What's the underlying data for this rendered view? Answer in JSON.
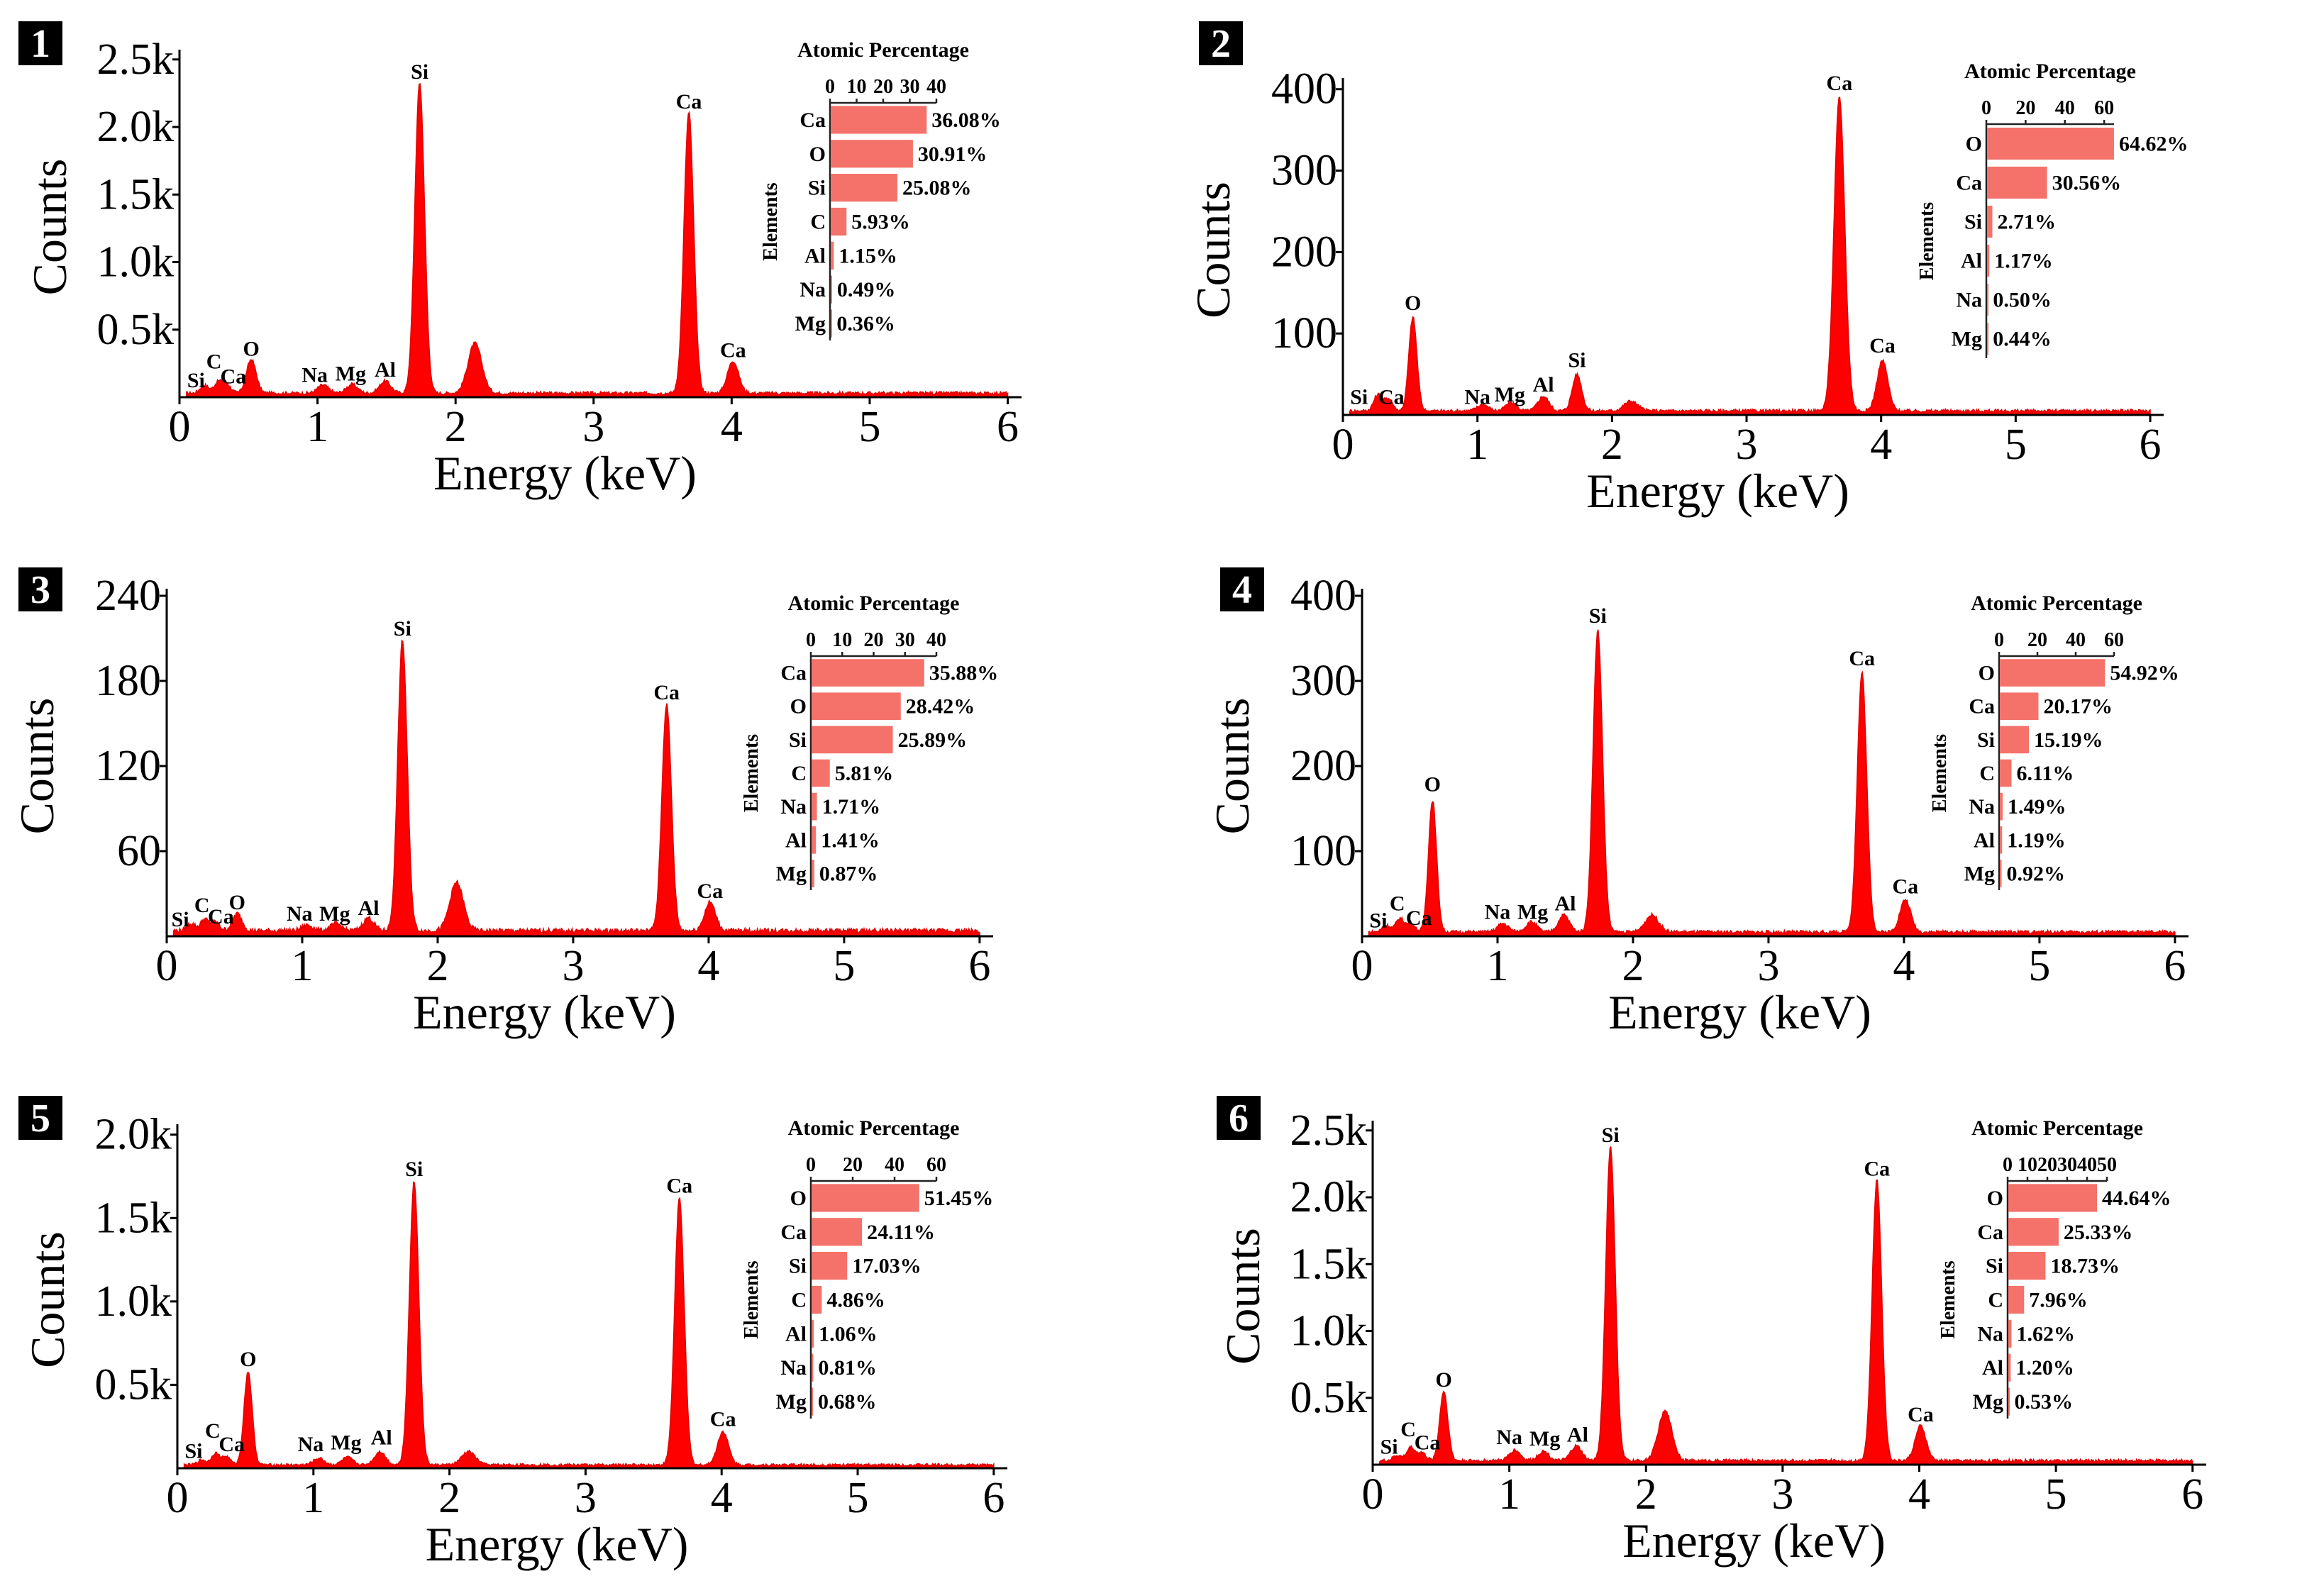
{
  "figure_title": "",
  "chart_data": [
    {
      "type": "area",
      "panel_label": "1",
      "xlabel": "Energy (keV)",
      "ylabel": "Counts",
      "xlim": [
        0,
        6.1
      ],
      "x_ticks": [
        0,
        1,
        2,
        3,
        4,
        5,
        6
      ],
      "x_tick_labels": [
        "0",
        "1",
        "2",
        "3",
        "4",
        "5",
        "6"
      ],
      "ylim": [
        0,
        2520
      ],
      "y_ticks": [
        500,
        1000,
        1500,
        2000,
        2500
      ],
      "y_tick_labels": [
        "0.5k",
        "1.0k",
        "1.5k",
        "2.0k",
        "2.5k"
      ],
      "spectrum_color": "#ff0000",
      "baseline": 30,
      "peaks": [
        {
          "x": 0.18,
          "y": 60,
          "w": 0.03
        },
        {
          "x": 0.28,
          "y": 80,
          "w": 0.03
        },
        {
          "x": 0.34,
          "y": 70,
          "w": 0.03
        },
        {
          "x": 0.52,
          "y": 250,
          "w": 0.035
        },
        {
          "x": 1.04,
          "y": 60,
          "w": 0.04
        },
        {
          "x": 1.25,
          "y": 65,
          "w": 0.04
        },
        {
          "x": 1.49,
          "y": 90,
          "w": 0.04
        },
        {
          "x": 1.74,
          "y": 2300,
          "w": 0.035
        },
        {
          "x": 2.14,
          "y": 370,
          "w": 0.05
        },
        {
          "x": 3.69,
          "y": 2080,
          "w": 0.035
        },
        {
          "x": 4.01,
          "y": 240,
          "w": 0.04
        }
      ],
      "annotations": [
        {
          "text": "Si",
          "x": 0.12,
          "y": 20
        },
        {
          "text": "C",
          "x": 0.25,
          "y": 160
        },
        {
          "text": "Ca",
          "x": 0.39,
          "y": 50
        },
        {
          "text": "O",
          "x": 0.52,
          "y": 255
        },
        {
          "text": "Na",
          "x": 0.98,
          "y": 60
        },
        {
          "text": "Mg",
          "x": 1.24,
          "y": 70
        },
        {
          "text": "Al",
          "x": 1.49,
          "y": 100
        },
        {
          "text": "Si",
          "x": 1.74,
          "y": 2305
        },
        {
          "text": "Ca",
          "x": 3.69,
          "y": 2085
        },
        {
          "text": "Ca",
          "x": 4.01,
          "y": 245
        }
      ],
      "inset": {
        "title": "Atomic Percentage",
        "ylabel": "Elements",
        "xlim": [
          0,
          40
        ],
        "x_ticks": [
          0,
          10,
          20,
          30,
          40
        ],
        "x_tick_labels": [
          "0",
          "10",
          "20",
          "30",
          "40"
        ],
        "categories": [
          "Ca",
          "O",
          "Si",
          "C",
          "Al",
          "Na",
          "Mg"
        ],
        "values": [
          36.08,
          30.91,
          25.08,
          5.93,
          1.15,
          0.49,
          0.36
        ],
        "value_labels": [
          "36.08%",
          "30.91%",
          "25.08%",
          "5.93%",
          "1.15%",
          "0.49%",
          "0.36%"
        ],
        "bar_color": "#f4726a"
      }
    },
    {
      "type": "area",
      "panel_label": "2",
      "xlabel": "Energy (keV)",
      "ylabel": "Counts",
      "xlim": [
        0,
        6.1
      ],
      "x_ticks": [
        0,
        1,
        2,
        3,
        4,
        5,
        6
      ],
      "x_tick_labels": [
        "0",
        "1",
        "2",
        "3",
        "4",
        "5",
        "6"
      ],
      "ylim": [
        0,
        405
      ],
      "y_ticks": [
        100,
        200,
        300,
        400
      ],
      "y_tick_labels": [
        "100",
        "200",
        "300",
        "400"
      ],
      "spectrum_color": "#ff0000",
      "baseline": 5,
      "peaks": [
        {
          "x": 0.26,
          "y": 20,
          "w": 0.03
        },
        {
          "x": 0.34,
          "y": 15,
          "w": 0.03
        },
        {
          "x": 0.52,
          "y": 115,
          "w": 0.03
        },
        {
          "x": 1.04,
          "y": 8,
          "w": 0.04
        },
        {
          "x": 1.25,
          "y": 10,
          "w": 0.04
        },
        {
          "x": 1.49,
          "y": 18,
          "w": 0.04
        },
        {
          "x": 1.74,
          "y": 45,
          "w": 0.035
        },
        {
          "x": 2.14,
          "y": 12,
          "w": 0.05
        },
        {
          "x": 3.69,
          "y": 385,
          "w": 0.04
        },
        {
          "x": 4.01,
          "y": 62,
          "w": 0.04
        }
      ],
      "annotations": [
        {
          "text": "Si",
          "x": 0.12,
          "y": 5
        },
        {
          "text": "Ca",
          "x": 0.36,
          "y": 5
        },
        {
          "text": "O",
          "x": 0.52,
          "y": 120
        },
        {
          "text": "Na",
          "x": 1.0,
          "y": 5
        },
        {
          "text": "Mg",
          "x": 1.24,
          "y": 8
        },
        {
          "text": "Al",
          "x": 1.49,
          "y": 20
        },
        {
          "text": "Si",
          "x": 1.74,
          "y": 50
        },
        {
          "text": "Ca",
          "x": 3.69,
          "y": 390
        },
        {
          "text": "Ca",
          "x": 4.01,
          "y": 68
        }
      ],
      "inset": {
        "title": "Atomic Percentage",
        "ylabel": "Elements",
        "xlim": [
          0,
          65
        ],
        "x_ticks": [
          0,
          20,
          40,
          60
        ],
        "x_tick_labels": [
          "0",
          "20",
          "40",
          "60"
        ],
        "categories": [
          "O",
          "Ca",
          "Si",
          "Al",
          "Na",
          "Mg"
        ],
        "values": [
          64.62,
          30.56,
          2.71,
          1.17,
          0.5,
          0.44
        ],
        "value_labels": [
          "64.62%",
          "30.56%",
          "2.71%",
          "1.17%",
          "0.50%",
          "0.44%"
        ],
        "bar_color": "#f4726a"
      }
    },
    {
      "type": "area",
      "panel_label": "3",
      "xlabel": "Energy (keV)",
      "ylabel": "Counts",
      "xlim": [
        0,
        6.1
      ],
      "x_ticks": [
        0,
        1,
        2,
        3,
        4,
        5,
        6
      ],
      "x_tick_labels": [
        "0",
        "1",
        "2",
        "3",
        "4",
        "5",
        "6"
      ],
      "ylim": [
        0,
        240
      ],
      "y_ticks": [
        60,
        120,
        180,
        240
      ],
      "y_tick_labels": [
        "60",
        "120",
        "180",
        "240"
      ],
      "spectrum_color": "#ff0000",
      "baseline": 4,
      "peaks": [
        {
          "x": 0.18,
          "y": 5,
          "w": 0.03
        },
        {
          "x": 0.28,
          "y": 8,
          "w": 0.03
        },
        {
          "x": 0.36,
          "y": 6,
          "w": 0.03
        },
        {
          "x": 0.52,
          "y": 12,
          "w": 0.035
        },
        {
          "x": 1.04,
          "y": 4,
          "w": 0.04
        },
        {
          "x": 1.25,
          "y": 5,
          "w": 0.04
        },
        {
          "x": 1.49,
          "y": 9,
          "w": 0.04
        },
        {
          "x": 1.74,
          "y": 205,
          "w": 0.035
        },
        {
          "x": 2.14,
          "y": 34,
          "w": 0.05
        },
        {
          "x": 3.69,
          "y": 160,
          "w": 0.035
        },
        {
          "x": 4.01,
          "y": 20,
          "w": 0.04
        }
      ],
      "annotations": [
        {
          "text": "Si",
          "x": 0.1,
          "y": 2
        },
        {
          "text": "C",
          "x": 0.26,
          "y": 12
        },
        {
          "text": "Ca",
          "x": 0.4,
          "y": 4
        },
        {
          "text": "O",
          "x": 0.52,
          "y": 14
        },
        {
          "text": "Na",
          "x": 0.98,
          "y": 6
        },
        {
          "text": "Mg",
          "x": 1.24,
          "y": 6
        },
        {
          "text": "Al",
          "x": 1.49,
          "y": 10
        },
        {
          "text": "Si",
          "x": 1.74,
          "y": 207
        },
        {
          "text": "Ca",
          "x": 3.69,
          "y": 162
        },
        {
          "text": "Ca",
          "x": 4.01,
          "y": 22
        }
      ],
      "inset": {
        "title": "Atomic Percentage",
        "ylabel": "Elements",
        "xlim": [
          0,
          40
        ],
        "x_ticks": [
          0,
          10,
          20,
          30,
          40
        ],
        "x_tick_labels": [
          "0",
          "10",
          "20",
          "30",
          "40"
        ],
        "categories": [
          "Ca",
          "O",
          "Si",
          "C",
          "Na",
          "Al",
          "Mg"
        ],
        "values": [
          35.88,
          28.42,
          25.89,
          5.81,
          1.71,
          1.41,
          0.87
        ],
        "value_labels": [
          "35.88%",
          "28.42%",
          "25.89%",
          "5.81%",
          "1.71%",
          "1.41%",
          "0.87%"
        ],
        "bar_color": "#f4726a"
      }
    },
    {
      "type": "area",
      "panel_label": "4",
      "xlabel": "Energy (keV)",
      "ylabel": "Counts",
      "xlim": [
        0,
        6.1
      ],
      "x_ticks": [
        0,
        1,
        2,
        3,
        4,
        5,
        6
      ],
      "x_tick_labels": [
        "0",
        "1",
        "2",
        "3",
        "4",
        "5",
        "6"
      ],
      "ylim": [
        0,
        400
      ],
      "y_ticks": [
        100,
        200,
        300,
        400
      ],
      "y_tick_labels": [
        "100",
        "200",
        "300",
        "400"
      ],
      "spectrum_color": "#ff0000",
      "baseline": 5,
      "peaks": [
        {
          "x": 0.18,
          "y": 8,
          "w": 0.03
        },
        {
          "x": 0.28,
          "y": 16,
          "w": 0.03
        },
        {
          "x": 0.36,
          "y": 10,
          "w": 0.03
        },
        {
          "x": 0.52,
          "y": 155,
          "w": 0.03
        },
        {
          "x": 1.04,
          "y": 10,
          "w": 0.04
        },
        {
          "x": 1.25,
          "y": 12,
          "w": 0.04
        },
        {
          "x": 1.49,
          "y": 20,
          "w": 0.04
        },
        {
          "x": 1.74,
          "y": 355,
          "w": 0.035
        },
        {
          "x": 2.14,
          "y": 20,
          "w": 0.05
        },
        {
          "x": 3.69,
          "y": 305,
          "w": 0.035
        },
        {
          "x": 4.01,
          "y": 38,
          "w": 0.04
        }
      ],
      "annotations": [
        {
          "text": "Si",
          "x": 0.12,
          "y": 2
        },
        {
          "text": "C",
          "x": 0.26,
          "y": 22
        },
        {
          "text": "Ca",
          "x": 0.42,
          "y": 5
        },
        {
          "text": "O",
          "x": 0.52,
          "y": 162
        },
        {
          "text": "Na",
          "x": 1.0,
          "y": 12
        },
        {
          "text": "Mg",
          "x": 1.26,
          "y": 12
        },
        {
          "text": "Al",
          "x": 1.5,
          "y": 22
        },
        {
          "text": "Si",
          "x": 1.74,
          "y": 360
        },
        {
          "text": "Ca",
          "x": 3.69,
          "y": 310
        },
        {
          "text": "Ca",
          "x": 4.01,
          "y": 42
        }
      ],
      "inset": {
        "title": "Atomic Percentage",
        "ylabel": "Elements",
        "xlim": [
          0,
          60
        ],
        "x_ticks": [
          0,
          20,
          40,
          60
        ],
        "x_tick_labels": [
          "0",
          "20",
          "40",
          "60"
        ],
        "categories": [
          "O",
          "Ca",
          "Si",
          "C",
          "Na",
          "Al",
          "Mg"
        ],
        "values": [
          54.92,
          20.17,
          15.19,
          6.11,
          1.49,
          1.19,
          0.92
        ],
        "value_labels": [
          "54.92%",
          "20.17%",
          "15.19%",
          "6.11%",
          "1.49%",
          "1.19%",
          "0.92%"
        ],
        "bar_color": "#f4726a"
      }
    },
    {
      "type": "area",
      "panel_label": "5",
      "xlabel": "Energy (keV)",
      "ylabel": "Counts",
      "xlim": [
        0,
        6.1
      ],
      "x_ticks": [
        0,
        1,
        2,
        3,
        4,
        5,
        6
      ],
      "x_tick_labels": [
        "0",
        "1",
        "2",
        "3",
        "4",
        "5",
        "6"
      ],
      "ylim": [
        0,
        2020
      ],
      "y_ticks": [
        500,
        1000,
        1500,
        2000
      ],
      "y_tick_labels": [
        "0.5k",
        "1.0k",
        "1.5k",
        "2.0k"
      ],
      "spectrum_color": "#ff0000",
      "baseline": 20,
      "peaks": [
        {
          "x": 0.18,
          "y": 30,
          "w": 0.03
        },
        {
          "x": 0.28,
          "y": 70,
          "w": 0.03
        },
        {
          "x": 0.36,
          "y": 50,
          "w": 0.03
        },
        {
          "x": 0.52,
          "y": 560,
          "w": 0.03
        },
        {
          "x": 1.04,
          "y": 40,
          "w": 0.04
        },
        {
          "x": 1.25,
          "y": 45,
          "w": 0.04
        },
        {
          "x": 1.49,
          "y": 80,
          "w": 0.04
        },
        {
          "x": 1.74,
          "y": 1700,
          "w": 0.035
        },
        {
          "x": 2.14,
          "y": 80,
          "w": 0.05
        },
        {
          "x": 3.69,
          "y": 1600,
          "w": 0.035
        },
        {
          "x": 4.01,
          "y": 200,
          "w": 0.04
        }
      ],
      "annotations": [
        {
          "text": "Si",
          "x": 0.12,
          "y": 20
        },
        {
          "text": "C",
          "x": 0.26,
          "y": 140
        },
        {
          "text": "Ca",
          "x": 0.4,
          "y": 60
        },
        {
          "text": "O",
          "x": 0.52,
          "y": 570
        },
        {
          "text": "Na",
          "x": 0.98,
          "y": 60
        },
        {
          "text": "Mg",
          "x": 1.24,
          "y": 70
        },
        {
          "text": "Al",
          "x": 1.5,
          "y": 100
        },
        {
          "text": "Si",
          "x": 1.74,
          "y": 1710
        },
        {
          "text": "Ca",
          "x": 3.69,
          "y": 1610
        },
        {
          "text": "Ca",
          "x": 4.01,
          "y": 210
        }
      ],
      "inset": {
        "title": "Atomic Percentage",
        "ylabel": "Elements",
        "xlim": [
          0,
          60
        ],
        "x_ticks": [
          0,
          20,
          40,
          60
        ],
        "x_tick_labels": [
          "0",
          "20",
          "40",
          "60"
        ],
        "categories": [
          "O",
          "Ca",
          "Si",
          "C",
          "Al",
          "Na",
          "Mg"
        ],
        "values": [
          51.45,
          24.11,
          17.03,
          4.86,
          1.06,
          0.81,
          0.68
        ],
        "value_labels": [
          "51.45%",
          "24.11%",
          "17.03%",
          "4.86%",
          "1.06%",
          "0.81%",
          "0.68%"
        ],
        "bar_color": "#f4726a"
      }
    },
    {
      "type": "area",
      "panel_label": "6",
      "xlabel": "Energy (keV)",
      "ylabel": "Counts",
      "xlim": [
        0,
        6.1
      ],
      "x_ticks": [
        0,
        1,
        2,
        3,
        4,
        5,
        6
      ],
      "x_tick_labels": [
        "0",
        "1",
        "2",
        "3",
        "4",
        "5",
        "6"
      ],
      "ylim": [
        0,
        2520
      ],
      "y_ticks": [
        500,
        1000,
        1500,
        2000,
        2500
      ],
      "y_tick_labels": [
        "0.5k",
        "1.0k",
        "1.5k",
        "2.0k",
        "2.5k"
      ],
      "spectrum_color": "#ff0000",
      "baseline": 30,
      "peaks": [
        {
          "x": 0.18,
          "y": 40,
          "w": 0.03
        },
        {
          "x": 0.28,
          "y": 100,
          "w": 0.03
        },
        {
          "x": 0.36,
          "y": 60,
          "w": 0.03
        },
        {
          "x": 0.52,
          "y": 520,
          "w": 0.03
        },
        {
          "x": 1.04,
          "y": 80,
          "w": 0.04
        },
        {
          "x": 1.25,
          "y": 70,
          "w": 0.04
        },
        {
          "x": 1.49,
          "y": 110,
          "w": 0.04
        },
        {
          "x": 1.74,
          "y": 2350,
          "w": 0.035
        },
        {
          "x": 2.14,
          "y": 370,
          "w": 0.05
        },
        {
          "x": 3.69,
          "y": 2100,
          "w": 0.035
        },
        {
          "x": 4.01,
          "y": 260,
          "w": 0.04
        }
      ],
      "annotations": [
        {
          "text": "Si",
          "x": 0.12,
          "y": 30
        },
        {
          "text": "C",
          "x": 0.26,
          "y": 160
        },
        {
          "text": "Ca",
          "x": 0.4,
          "y": 60
        },
        {
          "text": "O",
          "x": 0.52,
          "y": 530
        },
        {
          "text": "Na",
          "x": 1.0,
          "y": 100
        },
        {
          "text": "Mg",
          "x": 1.26,
          "y": 90
        },
        {
          "text": "Al",
          "x": 1.5,
          "y": 120
        },
        {
          "text": "Si",
          "x": 1.74,
          "y": 2360
        },
        {
          "text": "Ca",
          "x": 3.69,
          "y": 2110
        },
        {
          "text": "Ca",
          "x": 4.01,
          "y": 270
        }
      ],
      "inset": {
        "title": "Atomic Percentage",
        "ylabel": "Elements",
        "xlim": [
          0,
          50
        ],
        "x_ticks": [
          0,
          10,
          20,
          30,
          40,
          50
        ],
        "x_tick_labels": [
          "0",
          "10",
          "20",
          "30",
          "40",
          "50"
        ],
        "categories": [
          "O",
          "Ca",
          "Si",
          "C",
          "Na",
          "Al",
          "Mg"
        ],
        "values": [
          44.64,
          25.33,
          18.73,
          7.96,
          1.62,
          1.2,
          0.53
        ],
        "value_labels": [
          "44.64%",
          "25.33%",
          "18.73%",
          "7.96%",
          "1.62%",
          "1.20%",
          "0.53%"
        ],
        "bar_color": "#f4726a"
      }
    }
  ]
}
